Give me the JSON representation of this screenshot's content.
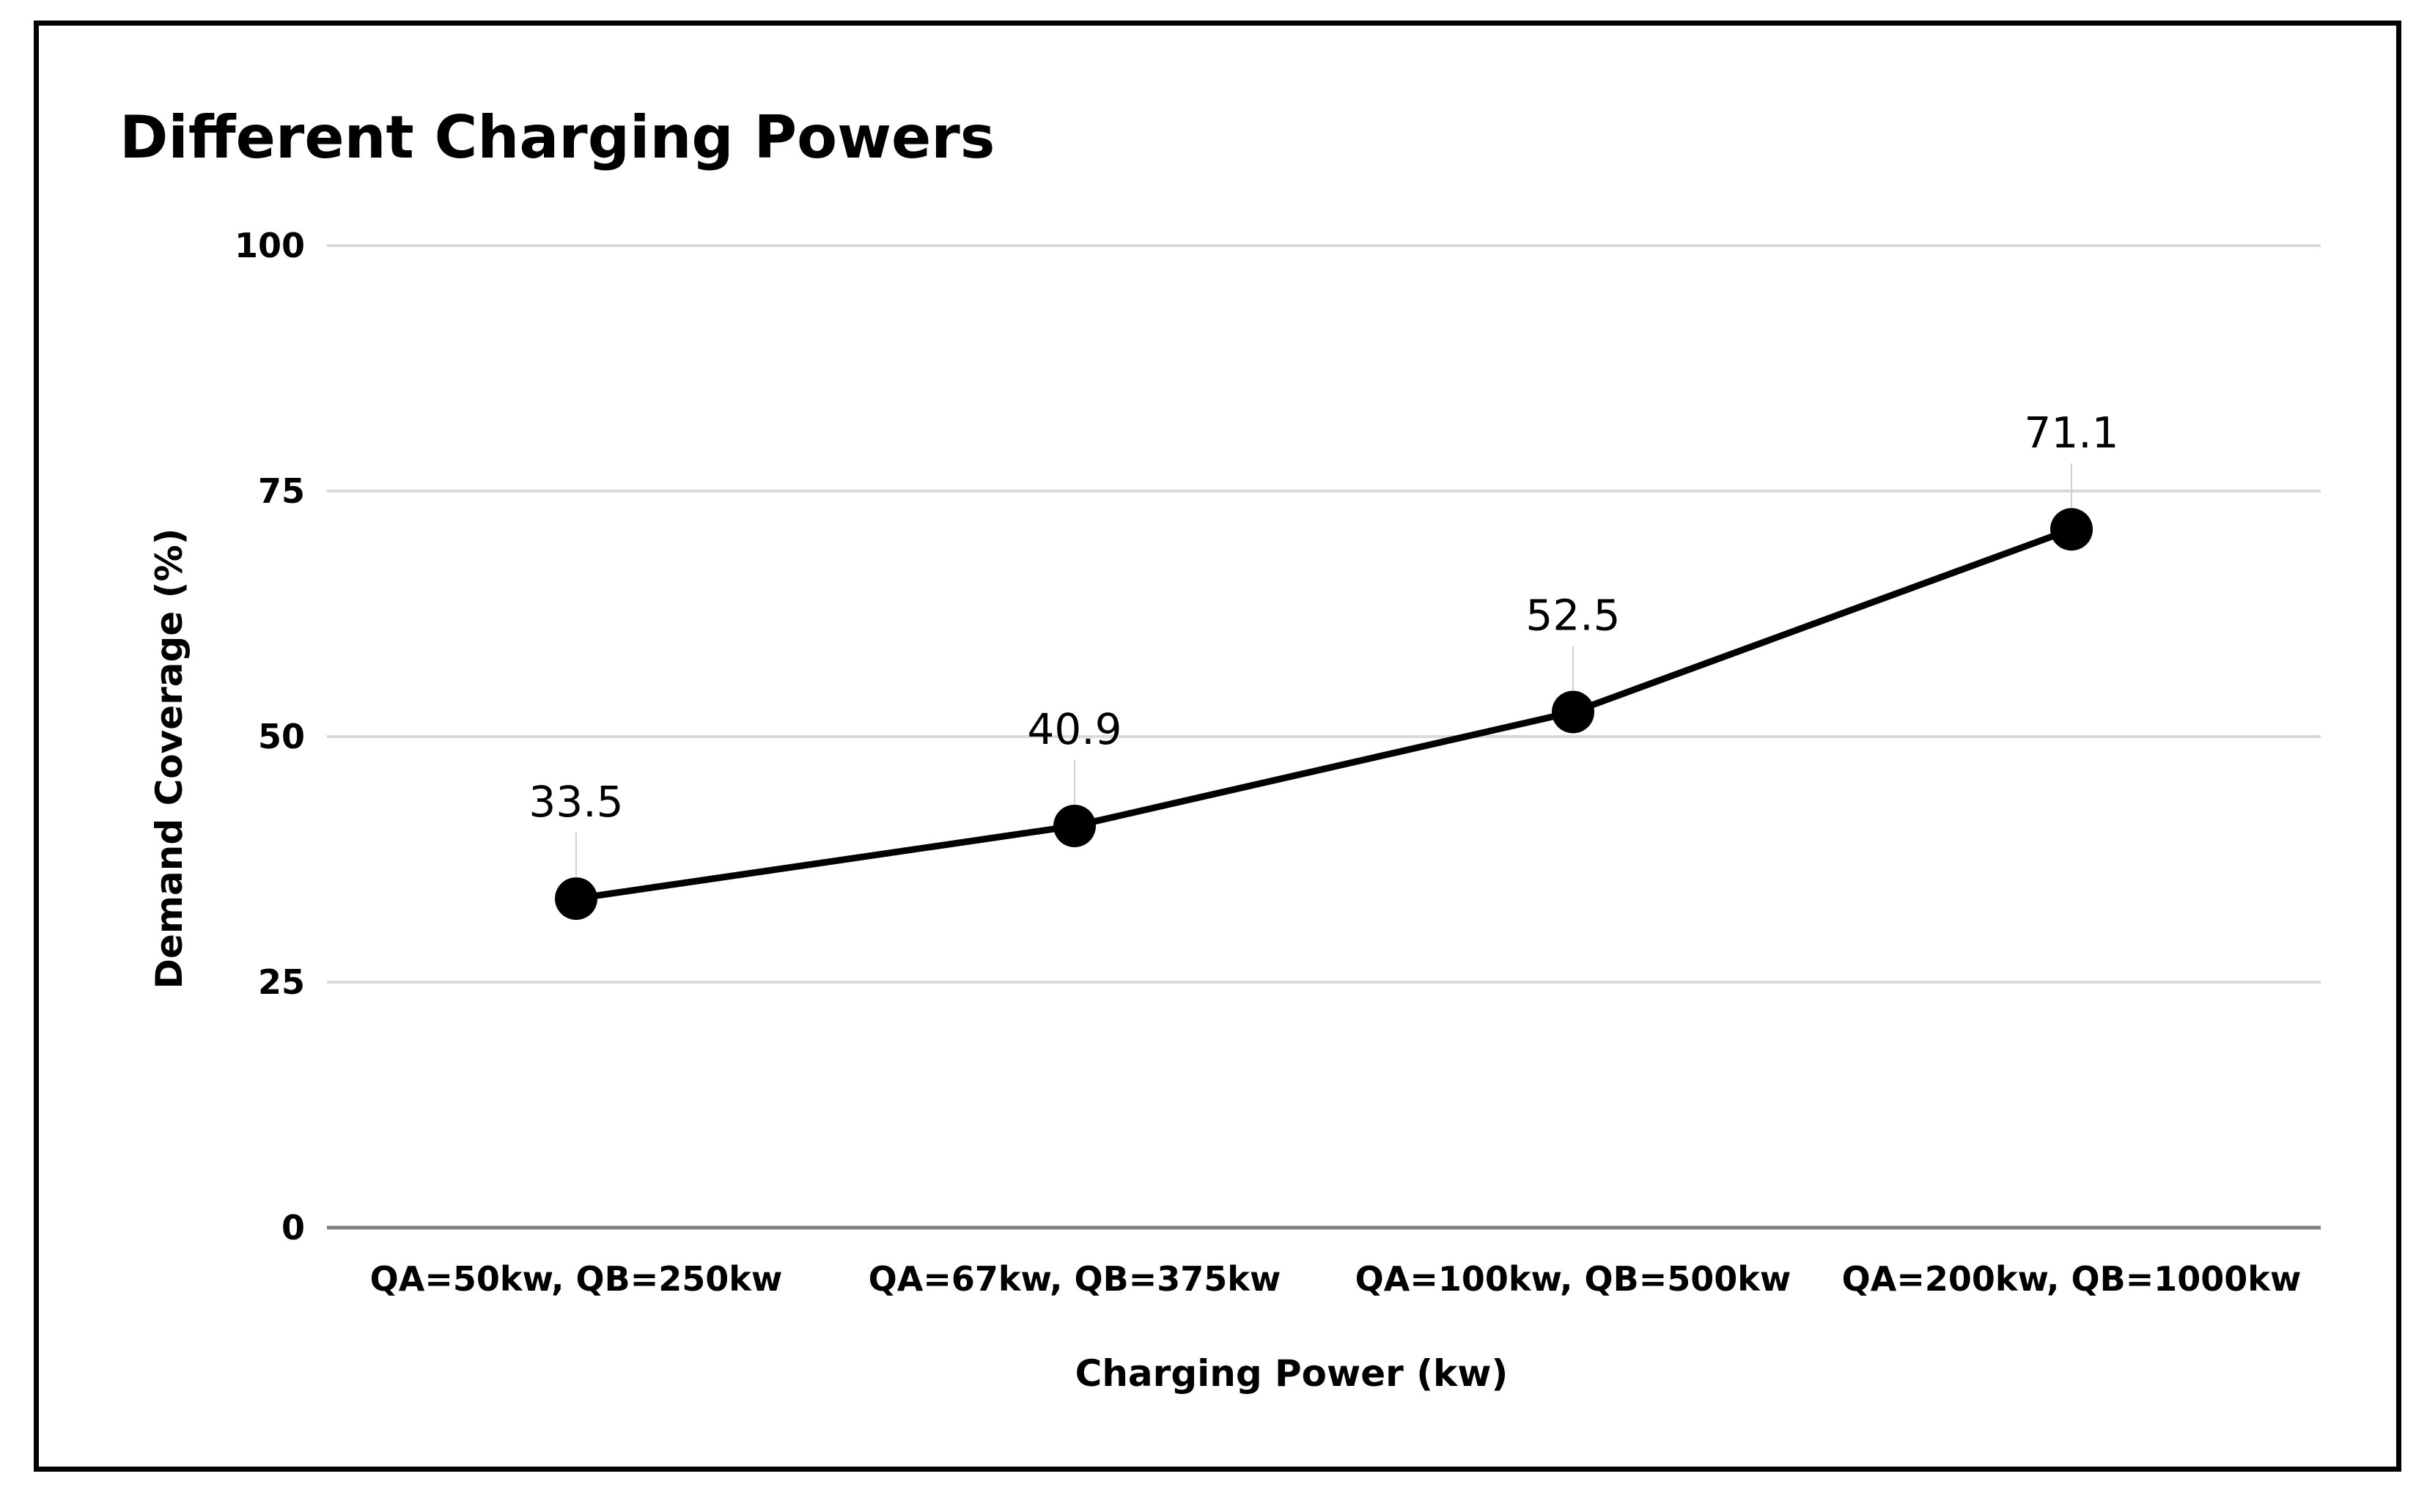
{
  "chart_data": {
    "type": "line",
    "title": "Different Charging Powers",
    "xlabel": "Charging Power (kw)",
    "ylabel": "Demand Coverage (%)",
    "categories": [
      "QA=50kw, QB=250kw",
      "QA=67kw, QB=375kw",
      "QA=100kw, QB=500kw",
      "QA=200kw, QB=1000kw"
    ],
    "series": [
      {
        "values": [
          33.5,
          40.9,
          52.5,
          71.1
        ],
        "data_labels": [
          "33.5",
          "40.9",
          "52.5",
          "71.1"
        ]
      }
    ],
    "ylim": [
      0,
      100
    ],
    "yticks": [
      0,
      25,
      50,
      75,
      100
    ],
    "ytick_labels": [
      "0",
      "25",
      "50",
      "75",
      "100"
    ],
    "grid": true,
    "legend": "none",
    "colors": {
      "line": "#000000",
      "marker": "#000000",
      "grid": "#d9d9d9",
      "baseline": "#808080"
    }
  }
}
